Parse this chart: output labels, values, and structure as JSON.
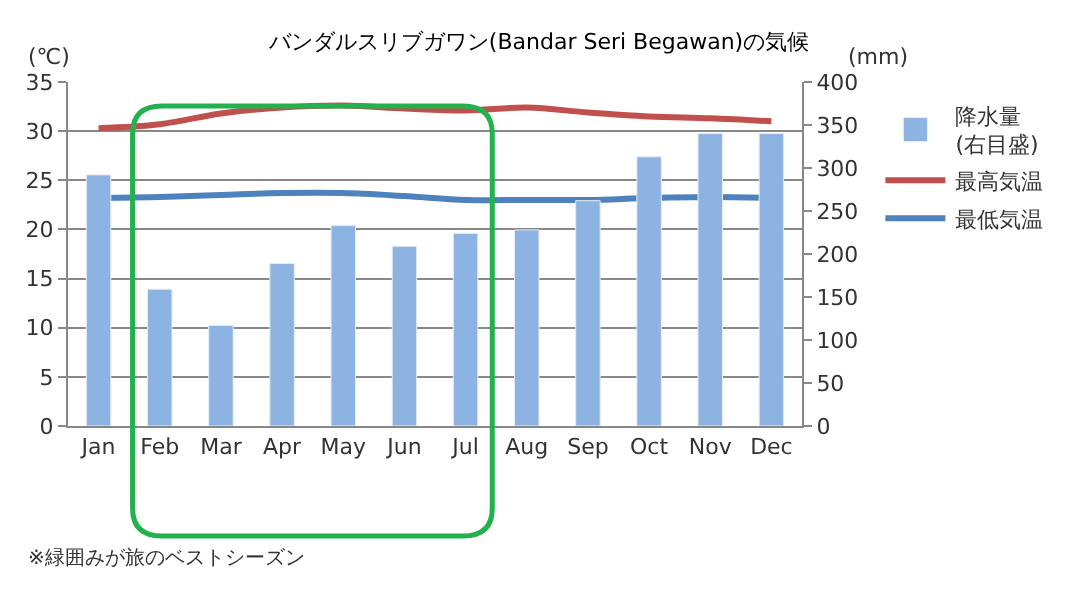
{
  "chart_data": {
    "type": "bar",
    "title": "バンダルスリブガワン(Bandar Seri Begawan)の気候",
    "ylabel": "(℃)",
    "y2label": "(mm)",
    "categories": [
      "Jan",
      "Feb",
      "Mar",
      "Apr",
      "May",
      "Jun",
      "Jul",
      "Aug",
      "Sep",
      "Oct",
      "Nov",
      "Dec"
    ],
    "series": [
      {
        "name": "降水量\n(右目盛)",
        "axis": "y2",
        "color": "#8db3e2",
        "values": [
          292,
          159,
          117,
          189,
          233,
          209,
          224,
          228,
          262,
          313,
          340,
          340
        ]
      },
      {
        "name": "最高気温",
        "type": "line",
        "color": "#c0504d",
        "values": [
          30.3,
          30.7,
          31.8,
          32.4,
          32.6,
          32.3,
          32.1,
          32.4,
          31.9,
          31.5,
          31.3,
          31.0
        ]
      },
      {
        "name": "最低気温",
        "type": "line",
        "color": "#4f81bd",
        "values": [
          23.2,
          23.3,
          23.5,
          23.7,
          23.7,
          23.4,
          23.0,
          23.0,
          23.0,
          23.2,
          23.3,
          23.2
        ]
      }
    ],
    "ylim": [
      0,
      35
    ],
    "yticks": [
      0,
      5,
      10,
      15,
      20,
      25,
      30,
      35
    ],
    "y2lim": [
      0,
      400
    ],
    "y2ticks": [
      0,
      50,
      100,
      150,
      200,
      250,
      300,
      350,
      400
    ],
    "grid": "y",
    "legend": "right",
    "marker": "none",
    "line_style": "solid",
    "annotations": [
      "※緑囲みが旅のベストシーズン"
    ]
  }
}
